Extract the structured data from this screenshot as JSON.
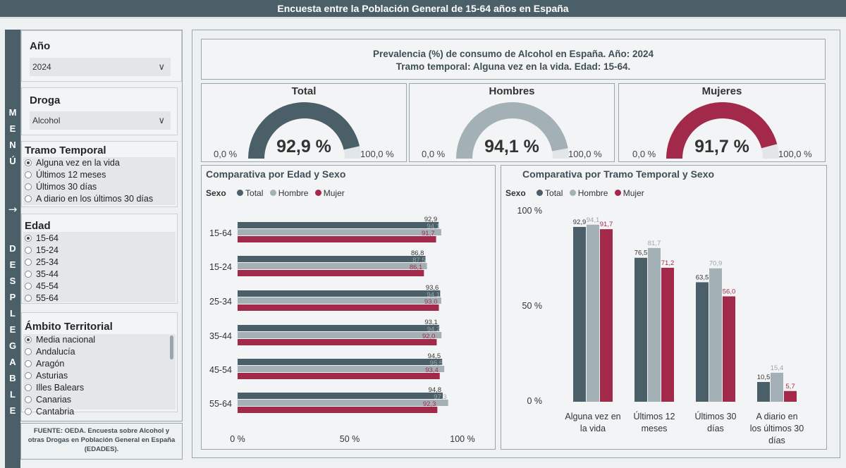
{
  "header": {
    "title": "Encuesta entre la Población General de 15-64 años en España"
  },
  "menu": {
    "letters": [
      "M",
      "E",
      "N",
      "Ú",
      "→",
      "D",
      "E",
      "S",
      "P",
      "L",
      "E",
      "G",
      "A",
      "B",
      "L",
      "E"
    ]
  },
  "filters": {
    "year": {
      "label": "Año",
      "value": "2024"
    },
    "drug": {
      "label": "Droga",
      "value": "Alcohol"
    },
    "period": {
      "label": "Tramo Temporal",
      "options": [
        "Alguna vez en la vida",
        "Últimos 12 meses",
        "Últimos 30 días",
        "A diario en los últimos 30 días"
      ],
      "selected": 0
    },
    "age": {
      "label": "Edad",
      "options": [
        "15-64",
        "15-24",
        "25-34",
        "35-44",
        "45-54",
        "55-64"
      ],
      "selected": 0
    },
    "territory": {
      "label": "Ámbito Territorial",
      "options": [
        "Media nacional",
        "Andalucía",
        "Aragón",
        "Asturias",
        "Illes Balears",
        "Canarias",
        "Cantabria"
      ],
      "selected": 0
    }
  },
  "source": "FUENTE: OEDA. Encuesta sobre Alcohol y otras Drogas en Población General en España (EDADES).",
  "report": {
    "title_line1": "Prevalencia (%) de consumo de Alcohol en España. Año: 2024",
    "title_line2": "Tramo temporal: Alguna vez en la vida. Edad: 15-64."
  },
  "colors": {
    "total": "#4b5f68",
    "hombre": "#a3b1b7",
    "mujer": "#a3294a",
    "gauge_bg": "#e3e6e8"
  },
  "kpis": [
    {
      "title": "Total",
      "value": 92.9,
      "label": "92,9 %",
      "min": "0,0 %",
      "max": "100,0 %",
      "color": "#4b5f68"
    },
    {
      "title": "Hombres",
      "value": 94.1,
      "label": "94,1 %",
      "min": "0,0 %",
      "max": "100,0 %",
      "color": "#a3b1b7"
    },
    {
      "title": "Mujeres",
      "value": 91.7,
      "label": "91,7 %",
      "min": "0,0 %",
      "max": "100,0 %",
      "color": "#a3294a"
    }
  ],
  "chart_data": [
    {
      "type": "bar",
      "orientation": "horizontal",
      "title": "Comparativa por Edad y Sexo",
      "legend_title": "Sexo",
      "categories": [
        "15-64",
        "15-24",
        "25-34",
        "35-44",
        "45-54",
        "55-64"
      ],
      "series": [
        {
          "name": "Total",
          "values": [
            92.9,
            86.8,
            93.6,
            93.1,
            94.5,
            94.8
          ],
          "labels": [
            "92,9",
            "86,8",
            "93,6",
            "93,1",
            "94,5",
            "94,8"
          ]
        },
        {
          "name": "Hombre",
          "values": [
            94.1,
            87.5,
            94.1,
            94.2,
            95.5,
            97.3
          ],
          "labels": [
            "94,1",
            "87,5",
            "94,1",
            "94,2",
            "95,5",
            "97,3"
          ]
        },
        {
          "name": "Mujer",
          "values": [
            91.7,
            86.1,
            93.0,
            92.0,
            93.4,
            92.3
          ],
          "labels": [
            "91,7",
            "86,1",
            "93,0",
            "92,0",
            "93,4",
            "92,3"
          ]
        }
      ],
      "xlim": [
        0,
        100
      ],
      "ticks": [
        "0 %",
        "50 %",
        "100 %"
      ]
    },
    {
      "type": "bar",
      "orientation": "vertical",
      "title": "Comparativa por Tramo Temporal y Sexo",
      "legend_title": "Sexo",
      "categories": [
        [
          "Alguna vez en",
          "la vida"
        ],
        [
          "Últimos 12",
          "meses"
        ],
        [
          "Últimos 30",
          "días"
        ],
        [
          "A diario en",
          "los últimos 30",
          "días"
        ]
      ],
      "series": [
        {
          "name": "Total",
          "values": [
            92.9,
            76.5,
            63.5,
            10.5
          ],
          "labels": [
            "92,9",
            "76,5",
            "63,5",
            "10,5"
          ]
        },
        {
          "name": "Hombre",
          "values": [
            94.1,
            81.7,
            70.9,
            15.4
          ],
          "labels": [
            "94,1",
            "81,7",
            "70,9",
            "15,4"
          ]
        },
        {
          "name": "Mujer",
          "values": [
            91.7,
            71.2,
            56.0,
            5.7
          ],
          "labels": [
            "91,7",
            "71,2",
            "56,0",
            "5,7"
          ]
        }
      ],
      "ylim": [
        0,
        100
      ],
      "ticks": [
        "0 %",
        "50 %",
        "100 %"
      ]
    }
  ]
}
